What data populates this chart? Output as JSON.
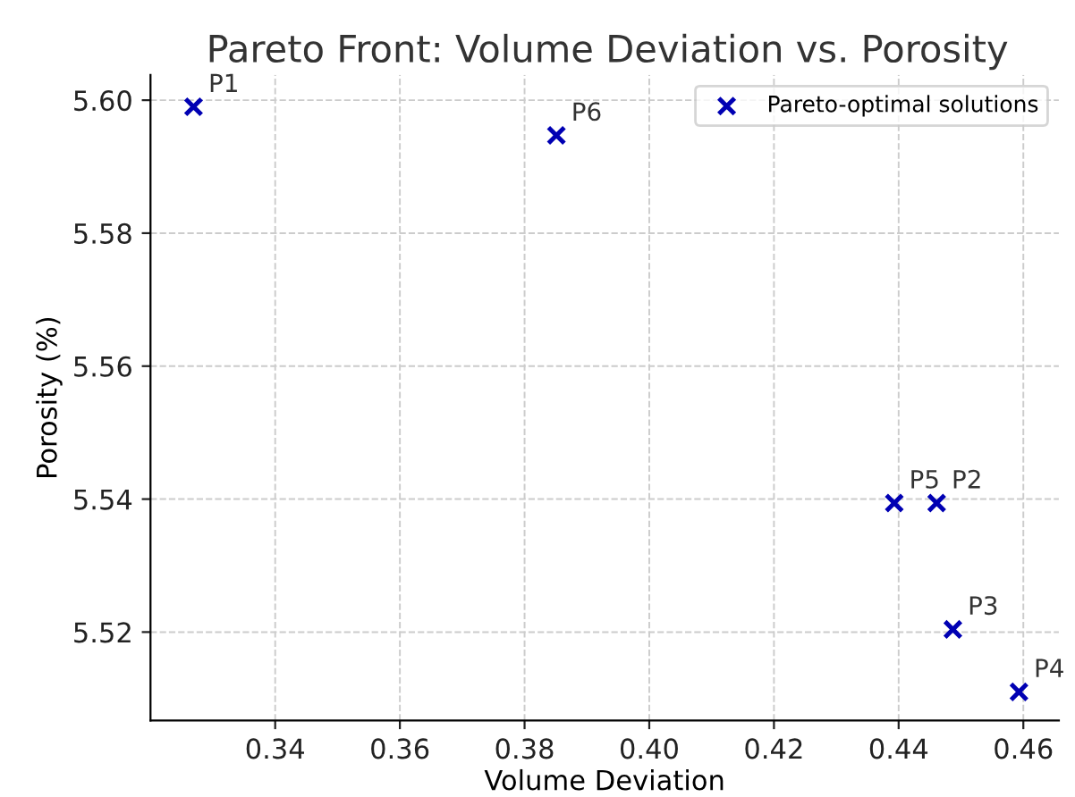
{
  "chart_data": {
    "type": "scatter",
    "title": "Pareto Front: Volume Deviation vs. Porosity",
    "xlabel": "Volume Deviation",
    "ylabel": "Porosity (%)",
    "series": [
      {
        "name": "Pareto-optimal solutions",
        "color": "#0000b3",
        "x": [
          0.3269,
          0.4461,
          0.4487,
          0.4593,
          0.4393,
          0.3851
        ],
        "values": [
          5.599,
          5.5394,
          5.5204,
          5.511,
          5.5394,
          5.5947
        ]
      }
    ],
    "annotations": [
      {
        "text": "P1",
        "x": 0.3269,
        "y": 5.599
      },
      {
        "text": "P2",
        "x": 0.4461,
        "y": 5.5394
      },
      {
        "text": "P3",
        "x": 0.4487,
        "y": 5.5204
      },
      {
        "text": "P4",
        "x": 0.4593,
        "y": 5.511
      },
      {
        "text": "P5",
        "x": 0.4393,
        "y": 5.5394
      },
      {
        "text": "P6",
        "x": 0.3851,
        "y": 5.5947
      }
    ],
    "xlim": [
      0.32,
      0.4657
    ],
    "ylim": [
      5.5067,
      5.6038
    ],
    "xticks": [
      {
        "value": 0.34,
        "label": "0.34"
      },
      {
        "value": 0.36,
        "label": "0.36"
      },
      {
        "value": 0.38,
        "label": "0.38"
      },
      {
        "value": 0.4,
        "label": "0.40"
      },
      {
        "value": 0.42,
        "label": "0.42"
      },
      {
        "value": 0.44,
        "label": "0.44"
      },
      {
        "value": 0.46,
        "label": "0.46"
      }
    ],
    "yticks": [
      {
        "value": 5.52,
        "label": "5.52"
      },
      {
        "value": 5.54,
        "label": "5.54"
      },
      {
        "value": 5.56,
        "label": "5.56"
      },
      {
        "value": 5.58,
        "label": "5.58"
      },
      {
        "value": 5.6,
        "label": "5.60"
      }
    ],
    "grid": true,
    "legend": "top right",
    "marker": "cross"
  }
}
